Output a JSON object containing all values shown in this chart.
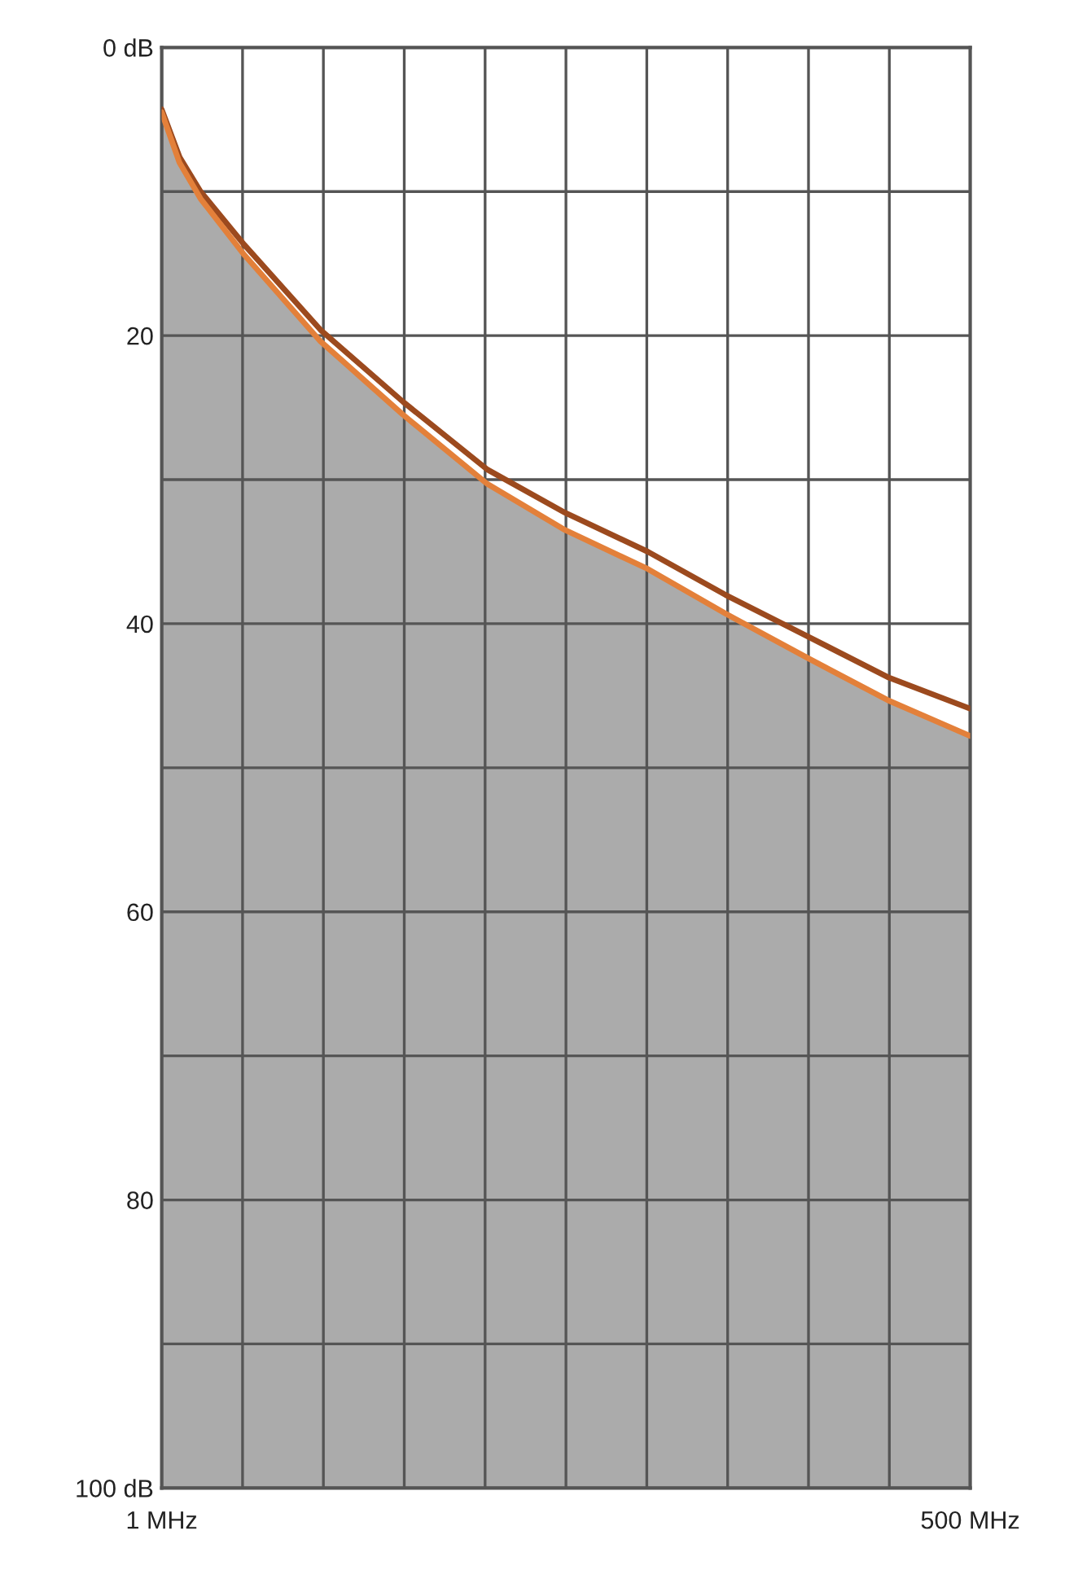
{
  "chart_data": {
    "type": "line",
    "x": [
      1,
      12,
      25,
      52,
      99,
      150,
      202,
      250,
      301,
      349,
      400,
      449,
      500
    ],
    "series": [
      {
        "color": "#9c4a1e",
        "values": [
          4.3,
          7.6,
          10.0,
          13.7,
          19.6,
          24.6,
          29.3,
          32.3,
          35.0,
          38.0,
          40.9,
          43.7,
          45.9
        ]
      },
      {
        "color": "#e3803a",
        "values": [
          4.5,
          8.0,
          10.5,
          14.4,
          20.4,
          25.5,
          30.3,
          33.5,
          36.2,
          39.3,
          42.4,
          45.3,
          47.8
        ],
        "lower": [
          4.5,
          8.0,
          10.5,
          14.4,
          20.4,
          25.5,
          30.3,
          33.5,
          36.2,
          39.3,
          42.4,
          45.3,
          47.8
        ],
        "upper": [
          100,
          100,
          100,
          100,
          100,
          100,
          100,
          100,
          100,
          100,
          100,
          100,
          100
        ]
      }
    ],
    "xlim": [
      1,
      500
    ],
    "xticks": [
      {
        "value": 1,
        "label": "1 MHz"
      },
      {
        "value": 50.9,
        "label": null
      },
      {
        "value": 100.8,
        "label": null
      },
      {
        "value": 150.7,
        "label": null
      },
      {
        "value": 200.6,
        "label": null
      },
      {
        "value": 250.5,
        "label": null
      },
      {
        "value": 300.4,
        "label": null
      },
      {
        "value": 350.3,
        "label": null
      },
      {
        "value": 400.2,
        "label": null
      },
      {
        "value": 450.1,
        "label": null
      },
      {
        "value": 500,
        "label": "500 MHz"
      }
    ],
    "ylim": [
      100,
      0
    ],
    "yticks": [
      {
        "value": 0,
        "label": "0 dB"
      },
      {
        "value": 10,
        "label": null
      },
      20,
      {
        "value": 30,
        "label": null
      },
      40,
      {
        "value": 50,
        "label": null
      },
      60,
      {
        "value": 70,
        "label": null
      },
      80,
      {
        "value": 90,
        "label": null
      },
      {
        "value": 100,
        "label": "100 dB"
      }
    ],
    "grid": true
  }
}
